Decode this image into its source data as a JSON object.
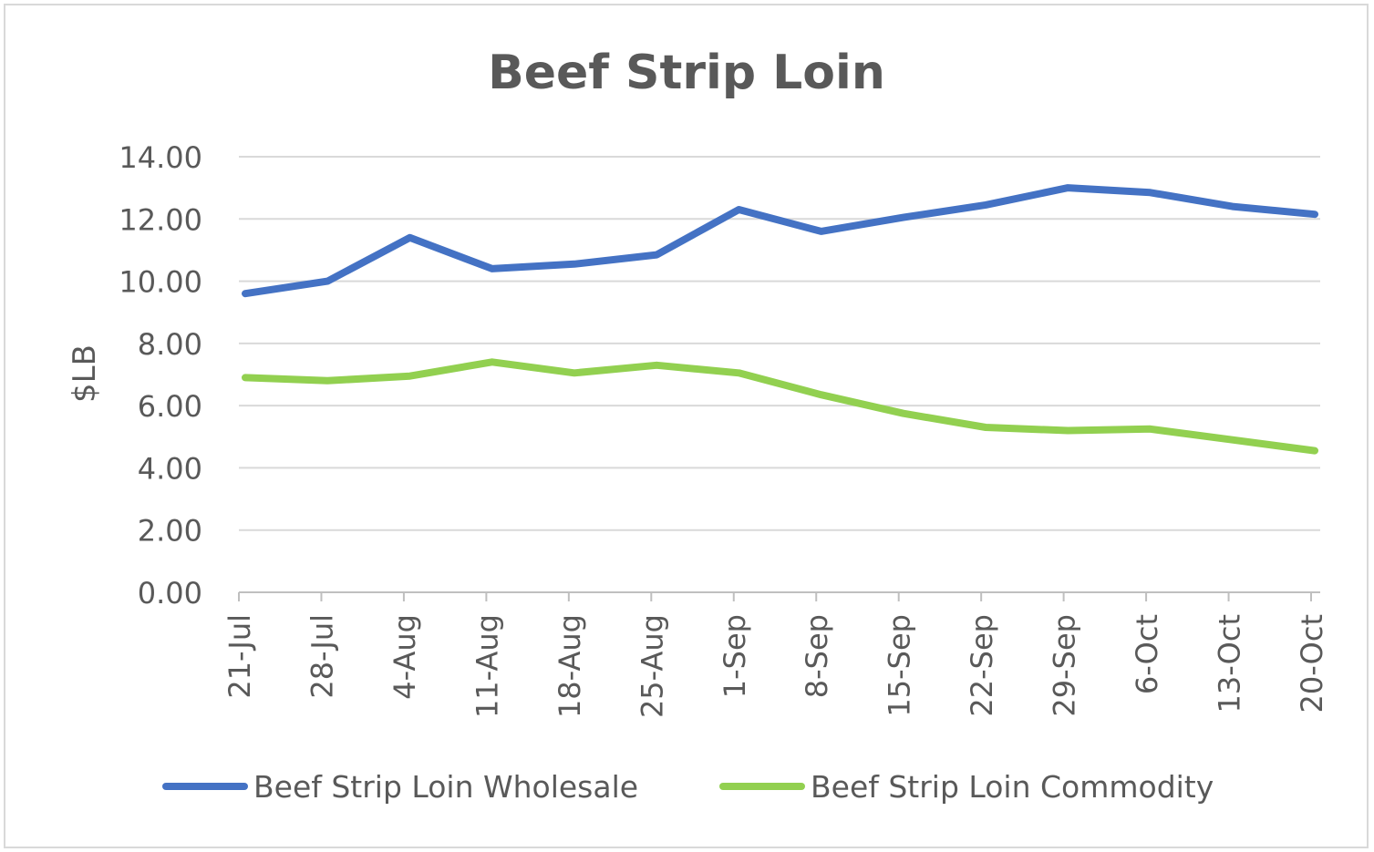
{
  "chart_data": {
    "type": "line",
    "title": "Beef Strip Loin",
    "xlabel": "",
    "ylabel": "$LB",
    "ylim": [
      0,
      14
    ],
    "yticks": [
      "0.00",
      "2.00",
      "4.00",
      "6.00",
      "8.00",
      "10.00",
      "12.00",
      "14.00"
    ],
    "grid": true,
    "legend_position": "bottom",
    "categories": [
      "21-Jul",
      "28-Jul",
      "4-Aug",
      "11-Aug",
      "18-Aug",
      "25-Aug",
      "1-Sep",
      "8-Sep",
      "15-Sep",
      "22-Sep",
      "29-Sep",
      "6-Oct",
      "13-Oct",
      "20-Oct"
    ],
    "series": [
      {
        "name": "Beef Strip Loin Wholesale",
        "color": "#4472c4",
        "values": [
          9.6,
          10.0,
          11.4,
          10.4,
          10.55,
          10.85,
          12.3,
          11.6,
          12.05,
          12.45,
          13.0,
          12.85,
          12.4,
          12.15
        ]
      },
      {
        "name": "Beef Strip Loin Commodity",
        "color": "#92d050",
        "values": [
          6.9,
          6.8,
          6.95,
          7.4,
          7.05,
          7.3,
          7.05,
          6.35,
          5.75,
          5.3,
          5.2,
          5.25,
          4.9,
          4.55
        ]
      }
    ]
  }
}
